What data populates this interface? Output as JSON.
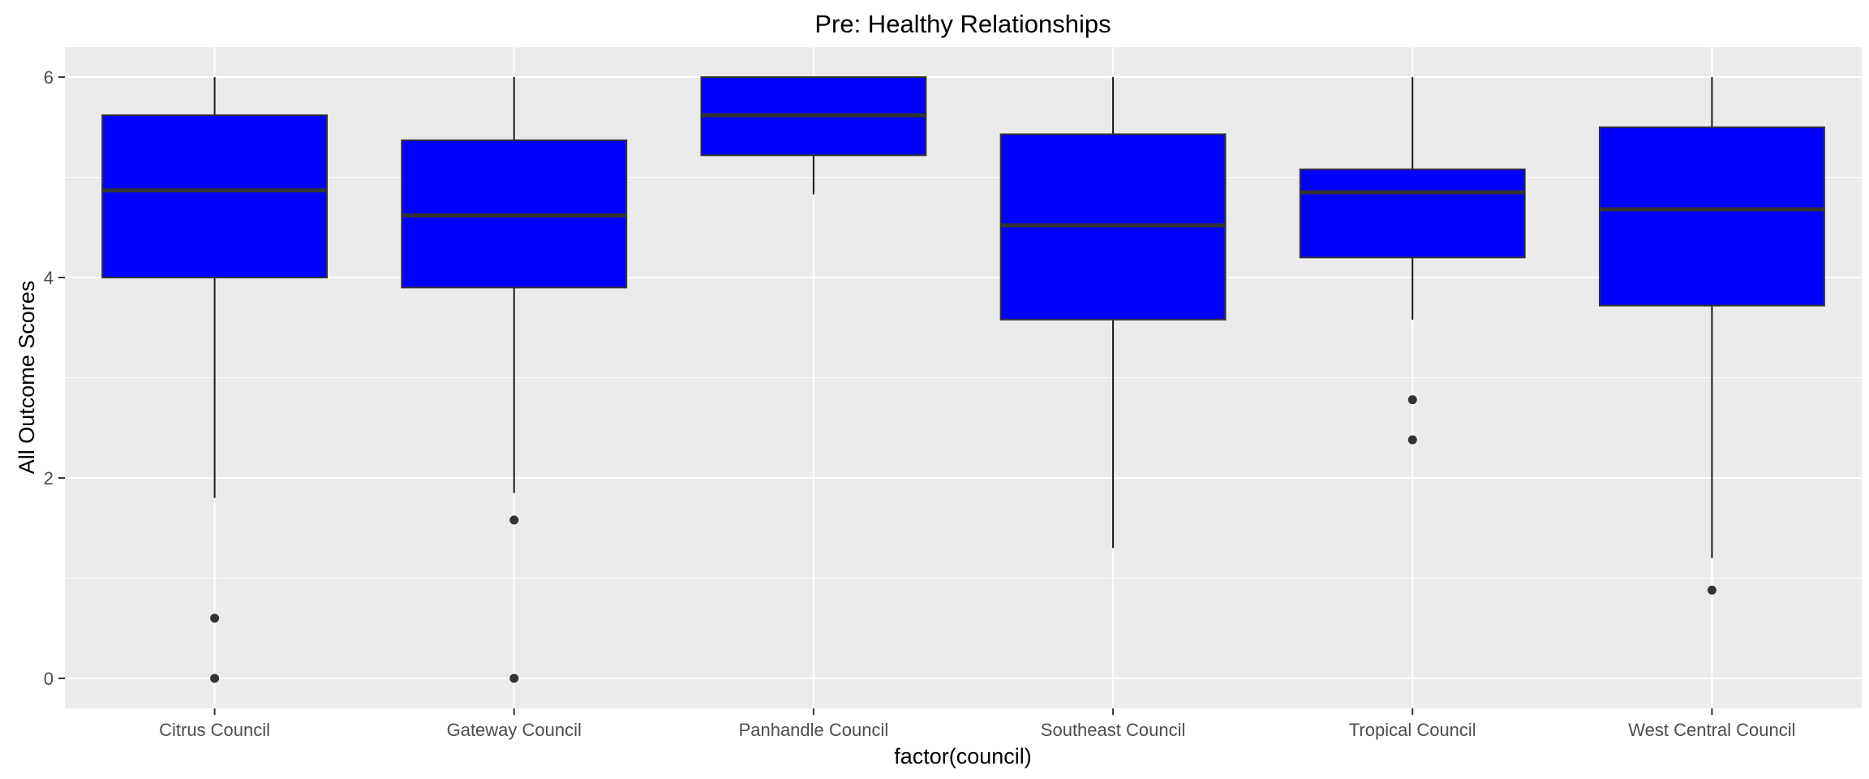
{
  "chart_data": {
    "type": "boxplot",
    "title": "Pre: Healthy Relationships",
    "xlabel": "factor(council)",
    "ylabel": "All Outcome Scores",
    "ylim": [
      -0.3,
      6.3
    ],
    "yticks": [
      0,
      2,
      4,
      6
    ],
    "grid": true,
    "legend": "none",
    "box_fill": "#0000ff",
    "panel_background": "#ebebeb",
    "categories": [
      "Citrus Council",
      "Gateway Council",
      "Panhandle Council",
      "Southeast Council",
      "Tropical Council",
      "West Central Council"
    ],
    "boxes": [
      {
        "category": "Citrus Council",
        "whisker_low": 1.8,
        "q1": 4.0,
        "median": 4.87,
        "q3": 5.62,
        "whisker_high": 6.0,
        "outliers": [
          0.6,
          0.0
        ]
      },
      {
        "category": "Gateway Council",
        "whisker_low": 1.85,
        "q1": 3.9,
        "median": 4.62,
        "q3": 5.37,
        "whisker_high": 6.0,
        "outliers": [
          1.58,
          0.0
        ]
      },
      {
        "category": "Panhandle Council",
        "whisker_low": 4.83,
        "q1": 5.22,
        "median": 5.62,
        "q3": 6.0,
        "whisker_high": 6.0,
        "outliers": []
      },
      {
        "category": "Southeast Council",
        "whisker_low": 1.3,
        "q1": 3.58,
        "median": 4.52,
        "q3": 5.43,
        "whisker_high": 6.0,
        "outliers": []
      },
      {
        "category": "Tropical Council",
        "whisker_low": 3.58,
        "q1": 4.2,
        "median": 4.85,
        "q3": 5.08,
        "whisker_high": 6.0,
        "outliers": [
          2.78,
          2.38
        ]
      },
      {
        "category": "West Central Council",
        "whisker_low": 1.2,
        "q1": 3.72,
        "median": 4.68,
        "q3": 5.5,
        "whisker_high": 6.0,
        "outliers": [
          0.88
        ]
      }
    ]
  }
}
